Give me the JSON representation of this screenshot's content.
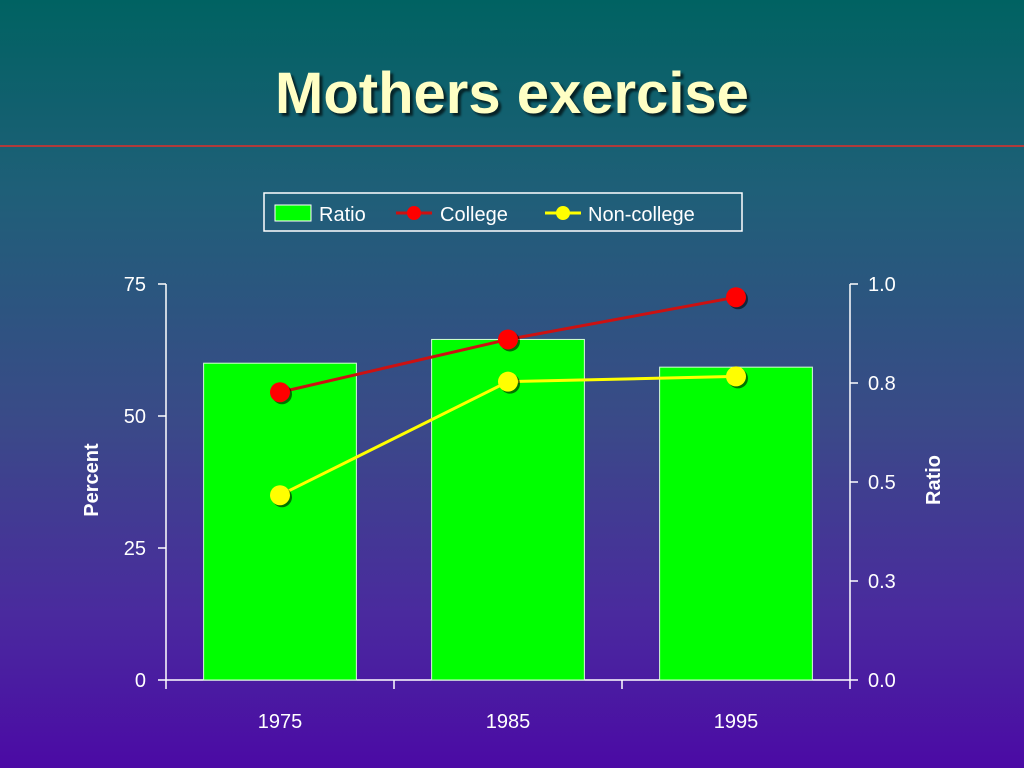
{
  "slide": {
    "title": "Mothers exercise"
  },
  "colors": {
    "ratio_bar": "#00ff00",
    "college": "#ff0000",
    "college_line": "#cc1111",
    "noncollege": "#ffff00",
    "noncollege_line": "#ffff00",
    "axis": "#ffffff"
  },
  "chart_data": {
    "type": "bar",
    "title": "",
    "categories": [
      "1975",
      "1985",
      "1995"
    ],
    "series": [
      {
        "name": "Ratio",
        "type": "bar",
        "axis": "right",
        "values": [
          0.8,
          0.86,
          0.79
        ]
      },
      {
        "name": "College",
        "type": "line",
        "axis": "left",
        "values": [
          54.5,
          64.5,
          72.5
        ]
      },
      {
        "name": "Non-college",
        "type": "line",
        "axis": "left",
        "values": [
          35,
          56.5,
          57.5
        ]
      }
    ],
    "ylabel": "Percent",
    "ylim": [
      0,
      75
    ],
    "yticks": [
      "0",
      "25",
      "50",
      "75"
    ],
    "y2label": "Ratio",
    "y2lim": [
      0,
      1.0
    ],
    "y2ticks": [
      "0.0",
      "0.3",
      "0.5",
      "0.8",
      "1.0"
    ],
    "legend": {
      "position": "top-center",
      "entries": [
        "Ratio",
        "College",
        "Non-college"
      ]
    },
    "grid": false
  }
}
